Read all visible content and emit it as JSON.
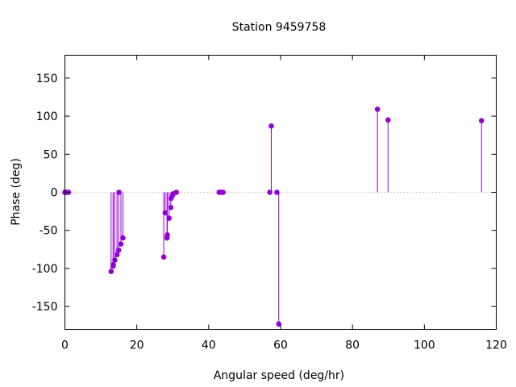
{
  "chart_data": {
    "type": "scatter",
    "style": "impulses-with-points",
    "title": "Station 9459758",
    "xlabel": "Angular speed (deg/hr)",
    "ylabel": "Phase (deg)",
    "xlim": [
      0,
      120
    ],
    "ylim": [
      -180,
      180
    ],
    "xticks": [
      0,
      20,
      40,
      60,
      80,
      100,
      120
    ],
    "yticks": [
      -150,
      -100,
      -50,
      0,
      50,
      100,
      150
    ],
    "zero_line": "dotted",
    "grid": false,
    "color": "#9400d3",
    "points": [
      {
        "x": 0.0,
        "y": 0
      },
      {
        "x": 0.04,
        "y": 0
      },
      {
        "x": 0.08,
        "y": 0
      },
      {
        "x": 0.5,
        "y": 0
      },
      {
        "x": 1.0,
        "y": 0
      },
      {
        "x": 12.85,
        "y": -104
      },
      {
        "x": 13.4,
        "y": -97
      },
      {
        "x": 13.47,
        "y": -95
      },
      {
        "x": 13.9,
        "y": -89
      },
      {
        "x": 14.5,
        "y": -82
      },
      {
        "x": 14.96,
        "y": -76
      },
      {
        "x": 15.04,
        "y": 0
      },
      {
        "x": 15.59,
        "y": -68
      },
      {
        "x": 16.14,
        "y": -60
      },
      {
        "x": 27.5,
        "y": -85
      },
      {
        "x": 27.9,
        "y": -27
      },
      {
        "x": 28.4,
        "y": -60
      },
      {
        "x": 28.5,
        "y": -56
      },
      {
        "x": 28.98,
        "y": -34
      },
      {
        "x": 29.46,
        "y": -20
      },
      {
        "x": 29.53,
        "y": -8
      },
      {
        "x": 29.96,
        "y": -4
      },
      {
        "x": 30.08,
        "y": -2
      },
      {
        "x": 31.0,
        "y": 0
      },
      {
        "x": 42.9,
        "y": 0
      },
      {
        "x": 43.5,
        "y": 0
      },
      {
        "x": 44.0,
        "y": 0
      },
      {
        "x": 57.0,
        "y": 0
      },
      {
        "x": 57.42,
        "y": 87
      },
      {
        "x": 58.98,
        "y": 0
      },
      {
        "x": 59.5,
        "y": -173
      },
      {
        "x": 86.95,
        "y": 109
      },
      {
        "x": 89.9,
        "y": 95
      },
      {
        "x": 115.9,
        "y": 94
      }
    ]
  }
}
